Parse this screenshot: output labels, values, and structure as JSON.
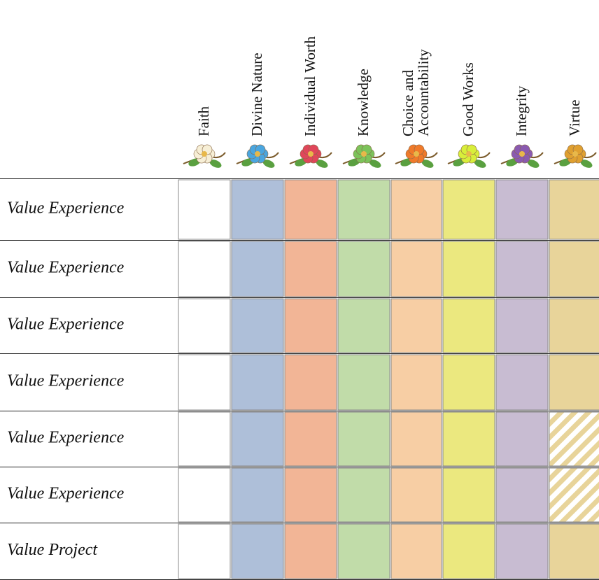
{
  "columns": [
    {
      "lines": [
        "Faith"
      ]
    },
    {
      "lines": [
        "Divine Nature"
      ]
    },
    {
      "lines": [
        "Individual Worth"
      ]
    },
    {
      "lines": [
        "Knowledge"
      ]
    },
    {
      "lines": [
        "Choice and",
        "Accountability"
      ]
    },
    {
      "lines": [
        "Good Works"
      ]
    },
    {
      "lines": [
        "Integrity"
      ]
    },
    {
      "lines": [
        "Virtue"
      ]
    }
  ],
  "rows": [
    "Value Experience",
    "Value Experience",
    "Value Experience",
    "Value Experience",
    "Value Experience",
    "Value Experience",
    "Value Project"
  ]
}
